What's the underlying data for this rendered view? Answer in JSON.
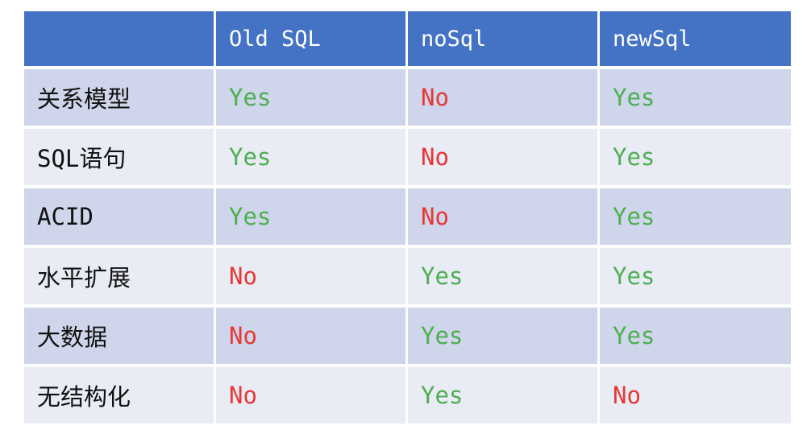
{
  "table": {
    "columns": [
      "Old SQL",
      "noSql",
      "newSql"
    ],
    "rows": [
      {
        "label": "关系模型",
        "cells": [
          {
            "text": "Yes",
            "color": "#4caf50"
          },
          {
            "text": "No",
            "color": "#e53935"
          },
          {
            "text": "Yes",
            "color": "#4caf50"
          }
        ]
      },
      {
        "label": "SQL语句",
        "cells": [
          {
            "text": "Yes",
            "color": "#4caf50"
          },
          {
            "text": "No",
            "color": "#e53935"
          },
          {
            "text": "Yes",
            "color": "#4caf50"
          }
        ]
      },
      {
        "label": "ACID",
        "cells": [
          {
            "text": "Yes",
            "color": "#4caf50"
          },
          {
            "text": "No",
            "color": "#e53935"
          },
          {
            "text": "Yes",
            "color": "#4caf50"
          }
        ]
      },
      {
        "label": "水平扩展",
        "cells": [
          {
            "text": "No",
            "color": "#e53935"
          },
          {
            "text": "Yes",
            "color": "#4caf50"
          },
          {
            "text": "Yes",
            "color": "#4caf50"
          }
        ]
      },
      {
        "label": "大数据",
        "cells": [
          {
            "text": "No",
            "color": "#e53935"
          },
          {
            "text": "Yes",
            "color": "#4caf50"
          },
          {
            "text": "Yes",
            "color": "#4caf50"
          }
        ]
      },
      {
        "label": "无结构化",
        "cells": [
          {
            "text": "No",
            "color": "#e53935"
          },
          {
            "text": "Yes",
            "color": "#4caf50"
          },
          {
            "text": "No",
            "color": "#e53935"
          }
        ]
      }
    ]
  }
}
